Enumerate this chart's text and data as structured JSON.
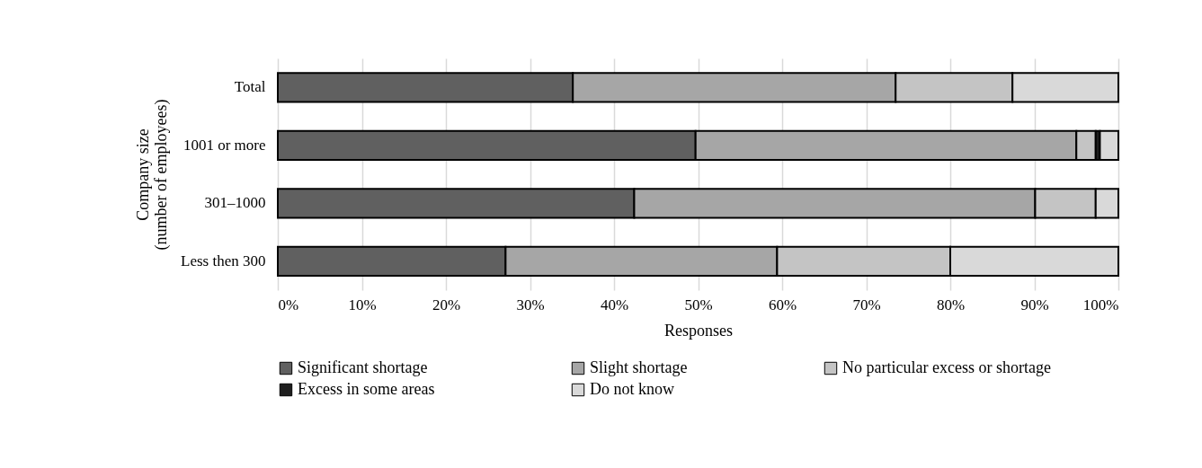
{
  "chart_data": {
    "type": "bar",
    "orientation": "horizontal",
    "stacked": true,
    "categories": [
      "Total",
      "1001 or more",
      "301–1000",
      "Less then 300"
    ],
    "series": [
      {
        "name": "Significant shortage",
        "color": "#606060",
        "values": [
          35.1,
          49.7,
          42.4,
          27.1
        ]
      },
      {
        "name": "Slight shortage",
        "color": "#a6a6a6",
        "values": [
          38.4,
          45.3,
          47.7,
          32.3
        ]
      },
      {
        "name": "No particular excess or shortage",
        "color": "#c4c4c4",
        "values": [
          13.9,
          2.3,
          7.2,
          20.6
        ]
      },
      {
        "name": "Excess in some areas",
        "color": "#1f1f1f",
        "values": [
          null,
          0.5,
          null,
          null
        ]
      },
      {
        "name": "Do not know",
        "color": "#d9d9d9",
        "values": [
          12.6,
          2.2,
          2.7,
          20.0
        ]
      }
    ],
    "xlabel": "Responses",
    "ylabel": "Company size\n(number of employees)",
    "xlim": [
      0,
      100
    ],
    "xticks": [
      {
        "value": 0,
        "label": "0%"
      },
      {
        "value": 10,
        "label": "10%"
      },
      {
        "value": 20,
        "label": "20%"
      },
      {
        "value": 30,
        "label": "30%"
      },
      {
        "value": 40,
        "label": "40%"
      },
      {
        "value": 50,
        "label": "50%"
      },
      {
        "value": 60,
        "label": "60%"
      },
      {
        "value": 70,
        "label": "70%"
      },
      {
        "value": 80,
        "label": "80%"
      },
      {
        "value": 90,
        "label": "90%"
      },
      {
        "value": 100,
        "label": "100%"
      }
    ],
    "grid": "x",
    "legend": "bottom"
  }
}
